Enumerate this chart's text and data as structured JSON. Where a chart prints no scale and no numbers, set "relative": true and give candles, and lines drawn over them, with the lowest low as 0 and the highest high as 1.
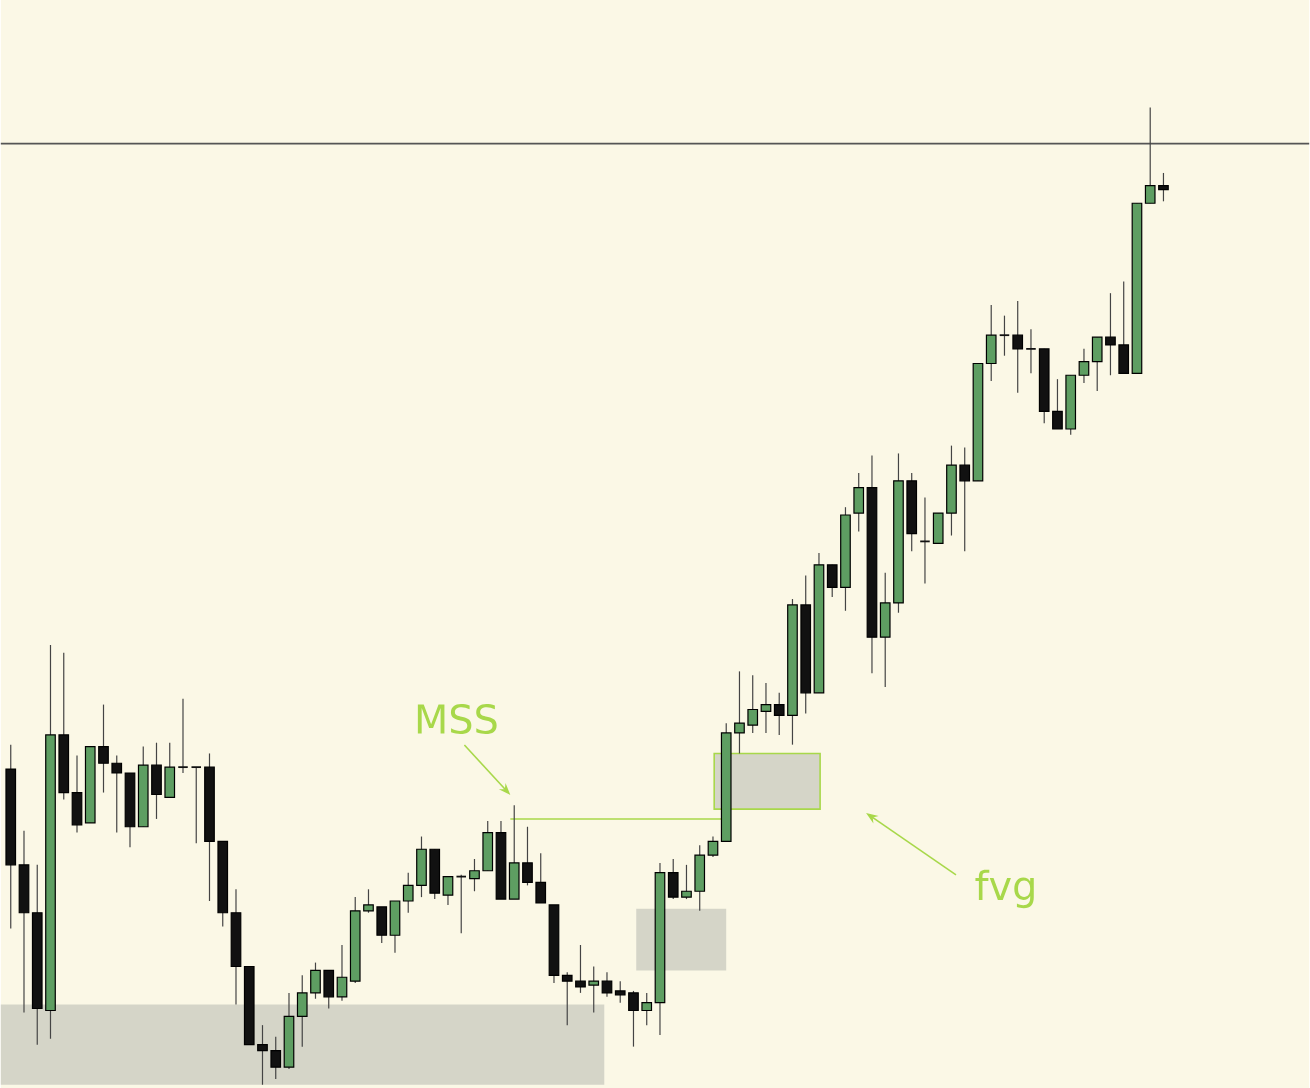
{
  "chart_data": {
    "type": "candlestick",
    "relative": true,
    "tick_labels": false,
    "categories": [
      null,
      null,
      null,
      null,
      null,
      null,
      null,
      null,
      null,
      null,
      null,
      null,
      null,
      null,
      null,
      null,
      null,
      null,
      null,
      null,
      null,
      null,
      null,
      null,
      null,
      null,
      null,
      null,
      null,
      null,
      null,
      null,
      null,
      null,
      null,
      null,
      null,
      null,
      null,
      null,
      null,
      null,
      null,
      null,
      null,
      null,
      null,
      null,
      null,
      null,
      null,
      null,
      null,
      null,
      null,
      null,
      null,
      null,
      null,
      null,
      null,
      null,
      null,
      null,
      null,
      null,
      null,
      null,
      null,
      null,
      null,
      null,
      null,
      null,
      null,
      null,
      null,
      null,
      null,
      null,
      null,
      null,
      null,
      null,
      null,
      null,
      null,
      null
    ],
    "ohlc": [
      [
        0.323,
        0.348,
        0.16,
        0.225
      ],
      [
        0.225,
        0.26,
        0.074,
        0.176
      ],
      [
        0.176,
        0.225,
        0.041,
        0.078
      ],
      [
        0.076,
        0.45,
        0.047,
        0.358
      ],
      [
        0.358,
        0.442,
        0.292,
        0.299
      ],
      [
        0.299,
        0.337,
        0.258,
        0.266
      ],
      [
        0.268,
        0.346,
        0.268,
        0.346
      ],
      [
        0.346,
        0.389,
        0.299,
        0.329
      ],
      [
        0.329,
        0.337,
        0.258,
        0.319
      ],
      [
        0.319,
        0.319,
        0.243,
        0.264
      ],
      [
        0.264,
        0.346,
        0.264,
        0.327
      ],
      [
        0.327,
        0.35,
        0.272,
        0.297
      ],
      [
        0.294,
        0.35,
        0.294,
        0.325
      ],
      [
        0.325,
        0.395,
        0.319,
        0.325
      ],
      [
        0.325,
        0.325,
        0.247,
        0.325
      ],
      [
        0.325,
        0.339,
        0.188,
        0.249
      ],
      [
        0.249,
        0.249,
        0.162,
        0.176
      ],
      [
        0.176,
        0.2,
        0.082,
        0.121
      ],
      [
        0.121,
        0.121,
        0.041,
        0.041
      ],
      [
        0.041,
        0.061,
        0.0,
        0.035
      ],
      [
        0.035,
        0.049,
        0.006,
        0.018
      ],
      [
        0.018,
        0.094,
        0.016,
        0.07
      ],
      [
        0.07,
        0.112,
        0.039,
        0.094
      ],
      [
        0.094,
        0.125,
        0.088,
        0.117
      ],
      [
        0.117,
        0.117,
        0.078,
        0.09
      ],
      [
        0.09,
        0.143,
        0.086,
        0.11
      ],
      [
        0.106,
        0.192,
        0.104,
        0.178
      ],
      [
        0.178,
        0.2,
        0.176,
        0.184
      ],
      [
        0.182,
        0.182,
        0.145,
        0.153
      ],
      [
        0.153,
        0.188,
        0.135,
        0.188
      ],
      [
        0.188,
        0.217,
        0.176,
        0.204
      ],
      [
        0.204,
        0.254,
        0.192,
        0.241
      ],
      [
        0.241,
        0.241,
        0.19,
        0.196
      ],
      [
        0.194,
        0.213,
        0.184,
        0.213
      ],
      [
        0.213,
        0.215,
        0.155,
        0.213
      ],
      [
        0.211,
        0.231,
        0.198,
        0.219
      ],
      [
        0.219,
        0.27,
        0.219,
        0.258
      ],
      [
        0.258,
        0.27,
        0.19,
        0.19
      ],
      [
        0.19,
        0.286,
        0.19,
        0.227
      ],
      [
        0.227,
        0.264,
        0.204,
        0.207
      ],
      [
        0.207,
        0.237,
        0.186,
        0.186
      ],
      [
        0.184,
        0.184,
        0.104,
        0.112
      ],
      [
        0.112,
        0.115,
        0.061,
        0.106
      ],
      [
        0.106,
        0.143,
        0.094,
        0.1
      ],
      [
        0.102,
        0.121,
        0.074,
        0.106
      ],
      [
        0.106,
        0.115,
        0.09,
        0.094
      ],
      [
        0.096,
        0.106,
        0.084,
        0.092
      ],
      [
        0.094,
        0.096,
        0.039,
        0.076
      ],
      [
        0.076,
        0.094,
        0.061,
        0.084
      ],
      [
        0.084,
        0.227,
        0.051,
        0.217
      ],
      [
        0.217,
        0.231,
        0.19,
        0.192
      ],
      [
        0.192,
        0.225,
        0.19,
        0.198
      ],
      [
        0.198,
        0.245,
        0.178,
        0.235
      ],
      [
        0.235,
        0.254,
        0.233,
        0.249
      ],
      [
        0.249,
        0.37,
        0.249,
        0.36
      ],
      [
        0.36,
        0.423,
        0.339,
        0.37
      ],
      [
        0.368,
        0.419,
        0.36,
        0.384
      ],
      [
        0.382,
        0.411,
        0.36,
        0.389
      ],
      [
        0.389,
        0.401,
        0.358,
        0.378
      ],
      [
        0.378,
        0.497,
        0.348,
        0.491
      ],
      [
        0.491,
        0.521,
        0.38,
        0.401
      ],
      [
        0.401,
        0.544,
        0.401,
        0.532
      ],
      [
        0.532,
        0.532,
        0.499,
        0.509
      ],
      [
        0.509,
        0.591,
        0.485,
        0.583
      ],
      [
        0.585,
        0.626,
        0.566,
        0.611
      ],
      [
        0.611,
        0.644,
        0.421,
        0.458
      ],
      [
        0.458,
        0.524,
        0.407,
        0.493
      ],
      [
        0.493,
        0.646,
        0.483,
        0.618
      ],
      [
        0.618,
        0.626,
        0.546,
        0.564
      ],
      [
        0.556,
        0.601,
        0.513,
        0.556
      ],
      [
        0.554,
        0.585,
        0.554,
        0.585
      ],
      [
        0.585,
        0.654,
        0.562,
        0.634
      ],
      [
        0.634,
        0.652,
        0.546,
        0.618
      ],
      [
        0.618,
        0.738,
        0.618,
        0.738
      ],
      [
        0.738,
        0.798,
        0.72,
        0.767
      ],
      [
        0.767,
        0.787,
        0.746,
        0.767
      ],
      [
        0.767,
        0.802,
        0.708,
        0.753
      ],
      [
        0.753,
        0.773,
        0.728,
        0.753
      ],
      [
        0.753,
        0.753,
        0.677,
        0.689
      ],
      [
        0.689,
        0.722,
        0.671,
        0.671
      ],
      [
        0.671,
        0.726,
        0.665,
        0.726
      ],
      [
        0.726,
        0.753,
        0.718,
        0.74
      ],
      [
        0.74,
        0.765,
        0.71,
        0.765
      ],
      [
        0.765,
        0.81,
        0.726,
        0.757
      ],
      [
        0.757,
        0.822,
        0.728,
        0.728
      ],
      [
        0.728,
        0.902,
        0.728,
        0.902
      ],
      [
        0.902,
        1.0,
        0.902,
        0.92
      ],
      [
        0.92,
        0.933,
        0.904,
        0.916
      ]
    ],
    "ref_lines": [
      {
        "axis": "y",
        "value": 0.963,
        "color": "#555555"
      },
      {
        "axis": "y",
        "value": 0.272,
        "color": "#a8d84a"
      }
    ],
    "bands": [
      {
        "axis": "y",
        "from": 0.0,
        "to": 0.082,
        "color": "#d5d5c8"
      },
      {
        "axis": "y",
        "from": 0.117,
        "to": 0.18,
        "color": "#d5d5c8"
      },
      {
        "axis": "y",
        "from": 0.282,
        "to": 0.339,
        "color": "#d5d5c8"
      }
    ],
    "annotations": [
      "MSS",
      "fvg"
    ]
  }
}
